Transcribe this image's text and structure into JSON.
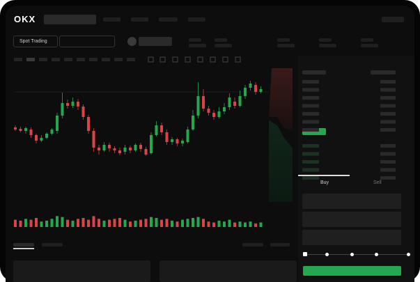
{
  "header": {
    "logo": "OKX",
    "market_button": "Spot Trading"
  },
  "trade_panel": {
    "tabs": [
      "Buy",
      "Sell"
    ]
  },
  "chart": {
    "type": "candlestick",
    "open": [
      115,
      113,
      110,
      112,
      104,
      96,
      100,
      106,
      110,
      132,
      150,
      146,
      152,
      145,
      130,
      110,
      86,
      82,
      90,
      85,
      82,
      80,
      86,
      82,
      90,
      84,
      78,
      104,
      118,
      108,
      94,
      98,
      92,
      94,
      112,
      132,
      160,
      142,
      136,
      130,
      138,
      144,
      152,
      146,
      160,
      172,
      176,
      166
    ],
    "close": [
      112,
      110,
      114,
      104,
      96,
      100,
      106,
      112,
      132,
      150,
      146,
      152,
      145,
      130,
      110,
      86,
      82,
      90,
      85,
      82,
      78,
      86,
      82,
      90,
      84,
      76,
      104,
      118,
      108,
      94,
      98,
      92,
      96,
      112,
      132,
      160,
      142,
      136,
      130,
      138,
      144,
      158,
      146,
      160,
      172,
      178,
      166,
      170
    ],
    "high": [
      118,
      116,
      116,
      115,
      106,
      104,
      108,
      114,
      136,
      165,
      155,
      158,
      156,
      148,
      133,
      114,
      90,
      94,
      93,
      88,
      86,
      90,
      89,
      92,
      93,
      87,
      108,
      124,
      122,
      112,
      101,
      100,
      99,
      116,
      140,
      180,
      170,
      146,
      140,
      144,
      150,
      164,
      158,
      168,
      176,
      182,
      180,
      174
    ],
    "low": [
      110,
      108,
      106,
      100,
      92,
      94,
      98,
      104,
      106,
      128,
      142,
      143,
      140,
      126,
      106,
      80,
      76,
      80,
      80,
      78,
      75,
      76,
      78,
      80,
      80,
      74,
      76,
      102,
      104,
      90,
      90,
      88,
      88,
      92,
      110,
      128,
      138,
      132,
      126,
      128,
      134,
      140,
      142,
      144,
      156,
      168,
      162,
      164
    ],
    "volume": [
      8,
      7,
      9,
      8,
      10,
      6,
      7,
      9,
      12,
      11,
      8,
      7,
      9,
      10,
      8,
      12,
      9,
      7,
      8,
      9,
      10,
      8,
      6,
      7,
      8,
      9,
      11,
      10,
      8,
      9,
      7,
      6,
      8,
      9,
      10,
      11,
      9,
      6,
      5,
      7,
      6,
      8,
      5,
      6,
      5,
      6,
      4,
      5
    ],
    "ylim": [
      60,
      200
    ],
    "volume_ylim": [
      0,
      20
    ],
    "up_color": "#25a750",
    "down_color": "#d9434a"
  }
}
